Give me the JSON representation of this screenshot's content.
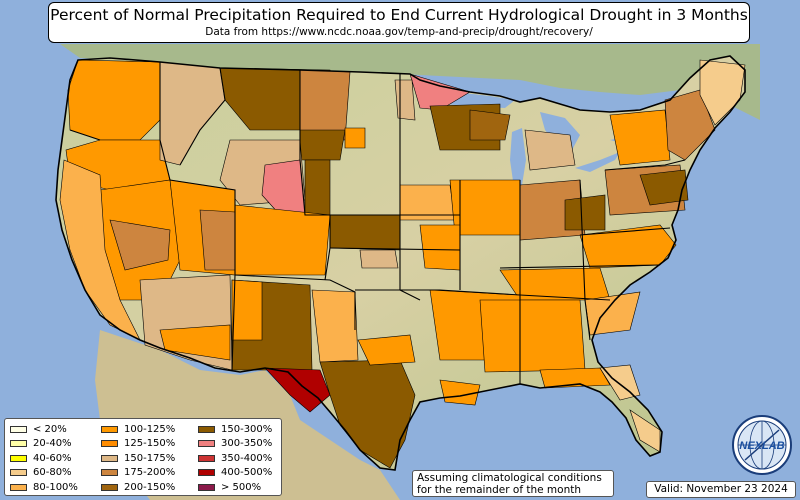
{
  "title": "Percent of Normal Precipitation Required to End Current Hydrological Drought in 3 Months",
  "subtitle": "Data from https://www.ncdc.noaa.gov/temp-and-precip/drought/recovery/",
  "legend": [
    {
      "label": "< 20%",
      "color": "#ffffe6"
    },
    {
      "label": "20-40%",
      "color": "#ffffa8"
    },
    {
      "label": "40-60%",
      "color": "#ffff00"
    },
    {
      "label": "60-80%",
      "color": "#f5cc8c"
    },
    {
      "label": "80-100%",
      "color": "#fbb14c"
    },
    {
      "label": "100-125%",
      "color": "#ff9900"
    },
    {
      "label": "125-150%",
      "color": "#ff8c00"
    },
    {
      "label": "150-175%",
      "color": "#deb887"
    },
    {
      "label": "175-200%",
      "color": "#cd853f"
    },
    {
      "label": "200-150%",
      "color": "#a0650f"
    },
    {
      "label": "150-300%",
      "color": "#8b5a00"
    },
    {
      "label": "300-350%",
      "color": "#f08080"
    },
    {
      "label": "350-400%",
      "color": "#cd3333"
    },
    {
      "label": "400-500%",
      "color": "#b00000"
    },
    {
      "label": "> 500%",
      "color": "#8b1a4a"
    }
  ],
  "note": {
    "line1": "Assuming climatological conditions",
    "line2": "for the remainder of the month"
  },
  "valid": "Valid: November 23 2024",
  "logo": {
    "text": "NEXLAB",
    "icon": "globe-logo-icon"
  },
  "colors": {
    "ocean": "#8fb0dc",
    "land": "#d9d2a8",
    "land_green": "#a9c08e",
    "boundary": "#000000"
  }
}
